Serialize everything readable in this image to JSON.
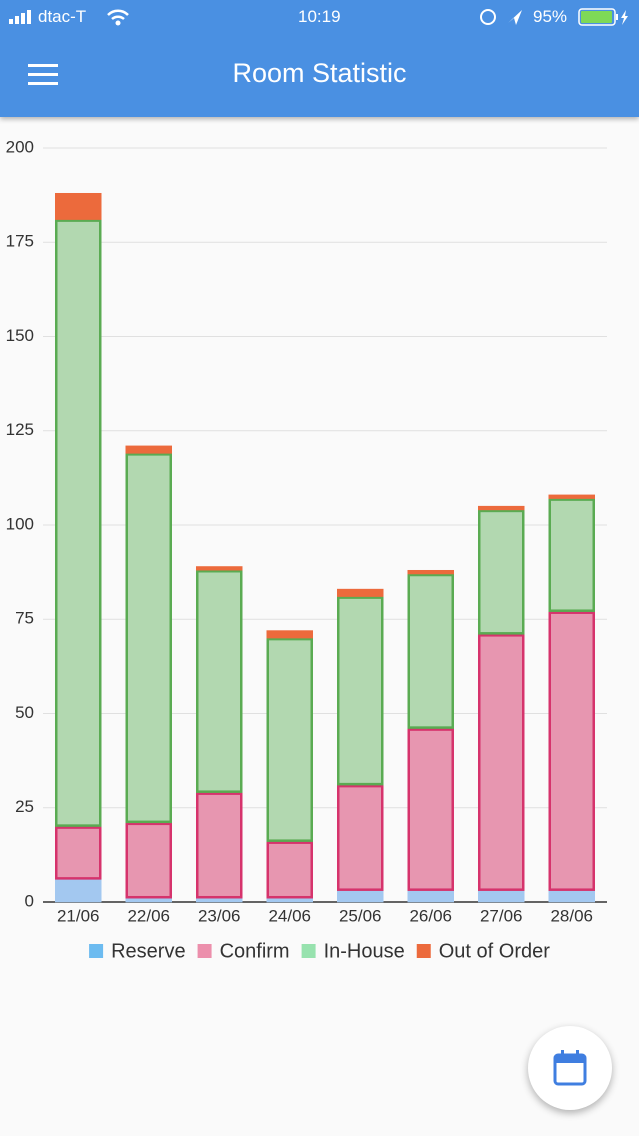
{
  "status_bar": {
    "carrier": "dtac-T",
    "time": "10:19",
    "battery": "95%"
  },
  "app_bar": {
    "title": "Room Statistic"
  },
  "chart_data": {
    "type": "stacked-bar",
    "categories": [
      "21/06",
      "22/06",
      "23/06",
      "24/06",
      "25/06",
      "26/06",
      "27/06",
      "28/06"
    ],
    "series": [
      {
        "name": "Reserve",
        "color": "#6cbbf0",
        "bar_fill": "#a3c8f0",
        "bar_stroke": "#a3c8f0",
        "values": [
          6,
          1,
          1,
          1,
          3,
          3,
          3,
          3
        ]
      },
      {
        "name": "Confirm",
        "color": "#ec8fac",
        "bar_fill": "#e796b0",
        "bar_stroke": "#d6336c",
        "values": [
          14,
          20,
          28,
          15,
          28,
          43,
          68,
          74
        ]
      },
      {
        "name": "In-House",
        "color": "#97e2ae",
        "bar_fill": "#b2d8b0",
        "bar_stroke": "#5aab52",
        "values": [
          161,
          98,
          59,
          54,
          50,
          41,
          33,
          30
        ]
      },
      {
        "name": "Out of Order",
        "color": "#ec6a3c",
        "bar_fill": "#ec6a3c",
        "bar_stroke": "#ec6a3c",
        "values": [
          7,
          2,
          1,
          2,
          2,
          1,
          1,
          1
        ]
      }
    ],
    "ylim": [
      0,
      200
    ],
    "yticks": [
      0,
      25,
      50,
      75,
      100,
      125,
      150,
      175,
      200
    ],
    "grid": true
  }
}
